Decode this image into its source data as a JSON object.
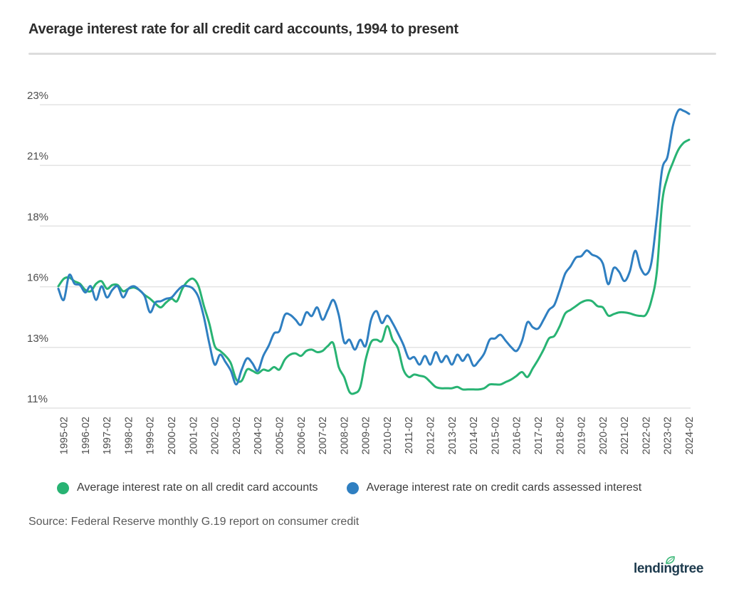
{
  "header": {
    "title": "Average interest rate for all credit card accounts, 1994 to present"
  },
  "chart_data": {
    "type": "line",
    "title": "Average interest rate for all credit card accounts, 1994 to present",
    "grid": true,
    "legend_position": "bottom",
    "y_axis_range": [
      10.8,
      23.0
    ],
    "y_ticks": [
      {
        "label": "23%",
        "value": 23.0
      },
      {
        "label": "21%",
        "value": 20.56
      },
      {
        "label": "18%",
        "value": 18.12
      },
      {
        "label": "16%",
        "value": 15.68
      },
      {
        "label": "13%",
        "value": 13.24
      },
      {
        "label": "11%",
        "value": 10.8
      }
    ],
    "x_tick_labels": [
      "1995-02",
      "1996-02",
      "1997-02",
      "1998-02",
      "1999-02",
      "2000-02",
      "2001-02",
      "2002-02",
      "2003-02",
      "2004-02",
      "2005-02",
      "2006-02",
      "2007-02",
      "2008-02",
      "2009-02",
      "2010-02",
      "2011-02",
      "2012-02",
      "2013-02",
      "2014-02",
      "2015-02",
      "2016-02",
      "2017-02",
      "2018-02",
      "2019-02",
      "2020-02",
      "2021-02",
      "2022-02",
      "2023-02",
      "2024-02"
    ],
    "x": [
      "1994-11",
      "1995-02",
      "1995-05",
      "1995-08",
      "1995-11",
      "1996-02",
      "1996-05",
      "1996-08",
      "1996-11",
      "1997-02",
      "1997-05",
      "1997-08",
      "1997-11",
      "1998-02",
      "1998-05",
      "1998-08",
      "1998-11",
      "1999-02",
      "1999-05",
      "1999-08",
      "1999-11",
      "2000-02",
      "2000-05",
      "2000-08",
      "2000-11",
      "2001-02",
      "2001-05",
      "2001-08",
      "2001-11",
      "2002-02",
      "2002-05",
      "2002-08",
      "2002-11",
      "2003-02",
      "2003-05",
      "2003-08",
      "2003-11",
      "2004-02",
      "2004-05",
      "2004-08",
      "2004-11",
      "2005-02",
      "2005-05",
      "2005-08",
      "2005-11",
      "2006-02",
      "2006-05",
      "2006-08",
      "2006-11",
      "2007-02",
      "2007-05",
      "2007-08",
      "2007-11",
      "2008-02",
      "2008-05",
      "2008-08",
      "2008-11",
      "2009-02",
      "2009-05",
      "2009-08",
      "2009-11",
      "2010-02",
      "2010-05",
      "2010-08",
      "2010-11",
      "2011-02",
      "2011-05",
      "2011-08",
      "2011-11",
      "2012-02",
      "2012-05",
      "2012-08",
      "2012-11",
      "2013-02",
      "2013-05",
      "2013-08",
      "2013-11",
      "2014-02",
      "2014-05",
      "2014-08",
      "2014-11",
      "2015-02",
      "2015-05",
      "2015-08",
      "2015-11",
      "2016-02",
      "2016-05",
      "2016-08",
      "2016-11",
      "2017-02",
      "2017-05",
      "2017-08",
      "2017-11",
      "2018-02",
      "2018-05",
      "2018-08",
      "2018-11",
      "2019-02",
      "2019-05",
      "2019-08",
      "2019-11",
      "2020-02",
      "2020-05",
      "2020-08",
      "2020-11",
      "2021-02",
      "2021-05",
      "2021-08",
      "2021-11",
      "2022-02",
      "2022-05",
      "2022-08",
      "2022-11",
      "2023-02",
      "2023-05",
      "2023-08",
      "2023-11",
      "2024-02"
    ],
    "series": [
      {
        "name": "Average interest rate on all credit card accounts",
        "color": "#28b373",
        "values": [
          15.7,
          16.0,
          16.05,
          15.9,
          15.8,
          15.55,
          15.5,
          15.8,
          15.9,
          15.6,
          15.75,
          15.75,
          15.5,
          15.6,
          15.65,
          15.55,
          15.35,
          15.2,
          15.0,
          14.85,
          15.05,
          15.2,
          15.1,
          15.6,
          15.9,
          16.0,
          15.7,
          14.9,
          14.2,
          13.3,
          13.1,
          12.9,
          12.6,
          11.95,
          11.9,
          12.35,
          12.3,
          12.2,
          12.35,
          12.3,
          12.45,
          12.35,
          12.75,
          12.95,
          13.0,
          12.9,
          13.1,
          13.15,
          13.05,
          13.1,
          13.3,
          13.4,
          12.45,
          12.05,
          11.45,
          11.4,
          11.65,
          12.75,
          13.45,
          13.55,
          13.5,
          14.1,
          13.55,
          13.2,
          12.35,
          12.05,
          12.15,
          12.1,
          12.05,
          11.85,
          11.65,
          11.6,
          11.6,
          11.6,
          11.65,
          11.55,
          11.55,
          11.55,
          11.55,
          11.6,
          11.75,
          11.75,
          11.75,
          11.85,
          11.95,
          12.1,
          12.25,
          12.05,
          12.4,
          12.75,
          13.15,
          13.6,
          13.7,
          14.1,
          14.6,
          14.75,
          14.9,
          15.05,
          15.13,
          15.1,
          14.9,
          14.85,
          14.52,
          14.58,
          14.65,
          14.65,
          14.61,
          14.54,
          14.51,
          14.56,
          15.13,
          16.27,
          19.07,
          20.09,
          20.68,
          21.19,
          21.47,
          21.59
        ]
      },
      {
        "name": "Average interest rate on credit cards assessed interest",
        "color": "#2f7fc1",
        "values": [
          15.6,
          15.15,
          16.15,
          15.8,
          15.75,
          15.45,
          15.7,
          15.15,
          15.7,
          15.25,
          15.55,
          15.7,
          15.25,
          15.6,
          15.7,
          15.55,
          15.3,
          14.65,
          15.05,
          15.1,
          15.2,
          15.25,
          15.5,
          15.7,
          15.7,
          15.6,
          15.25,
          14.45,
          13.4,
          12.55,
          12.95,
          12.65,
          12.3,
          11.75,
          12.35,
          12.8,
          12.6,
          12.3,
          12.9,
          13.3,
          13.8,
          13.9,
          14.55,
          14.55,
          14.35,
          14.15,
          14.65,
          14.5,
          14.85,
          14.35,
          14.75,
          15.15,
          14.55,
          13.45,
          13.55,
          13.15,
          13.55,
          13.3,
          14.35,
          14.7,
          14.22,
          14.52,
          14.22,
          13.8,
          13.35,
          12.8,
          12.85,
          12.55,
          12.9,
          12.55,
          13.05,
          12.65,
          12.9,
          12.55,
          12.95,
          12.7,
          12.95,
          12.5,
          12.7,
          13.0,
          13.55,
          13.6,
          13.75,
          13.5,
          13.25,
          13.1,
          13.5,
          14.25,
          14.05,
          14.0,
          14.35,
          14.75,
          14.95,
          15.55,
          16.2,
          16.5,
          16.85,
          16.91,
          17.14,
          16.97,
          16.88,
          16.61,
          15.78,
          16.43,
          16.28,
          15.91,
          16.3,
          17.13,
          16.44,
          16.17,
          16.65,
          18.43,
          20.4,
          20.92,
          22.16,
          22.77,
          22.75,
          22.63
        ]
      }
    ]
  },
  "source": {
    "text": "Source: Federal Reserve monthly G.19 report on consumer credit"
  },
  "logo": {
    "text": "lendingtree",
    "leaf_color": "#3cb878",
    "text_color": "#1e3b4e"
  },
  "colors": {
    "accent_green": "#28b373",
    "accent_blue": "#2f7fc1",
    "grid": "#e3e3e3",
    "axis_text": "#4d4d4d",
    "title_text": "#2d2d2d",
    "source_text": "#595959",
    "divider": "#dcdcdc",
    "background": "#ffffff"
  }
}
